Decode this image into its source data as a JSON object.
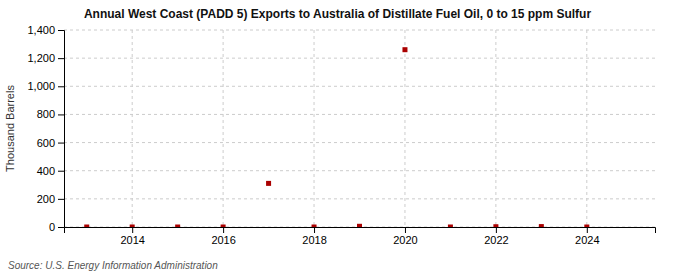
{
  "chart_data": {
    "type": "scatter",
    "title": "Annual West Coast (PADD 5) Exports to Australia of Distillate Fuel Oil, 0 to 15 ppm Sulfur",
    "y_label": "Thousand Barrels",
    "source": "Source: U.S. Energy Information Administration",
    "x": [
      2013,
      2014,
      2015,
      2016,
      2017,
      2018,
      2019,
      2020,
      2021,
      2022,
      2023,
      2024
    ],
    "values": [
      0,
      0,
      0,
      0,
      310,
      0,
      5,
      1260,
      0,
      2,
      3,
      0
    ],
    "color": "#aa0000",
    "marker": "square",
    "xlim": [
      2012.5,
      2025.5
    ],
    "xticks": [
      2014,
      2016,
      2018,
      2020,
      2022,
      2024
    ],
    "ylim": [
      0,
      1400
    ],
    "yticks": [
      0,
      200,
      400,
      600,
      800,
      {
        "value": 1000,
        "label": "1,000"
      },
      {
        "value": 1200,
        "label": "1,200"
      },
      {
        "value": 1400,
        "label": "1,400"
      }
    ],
    "grid": true
  }
}
